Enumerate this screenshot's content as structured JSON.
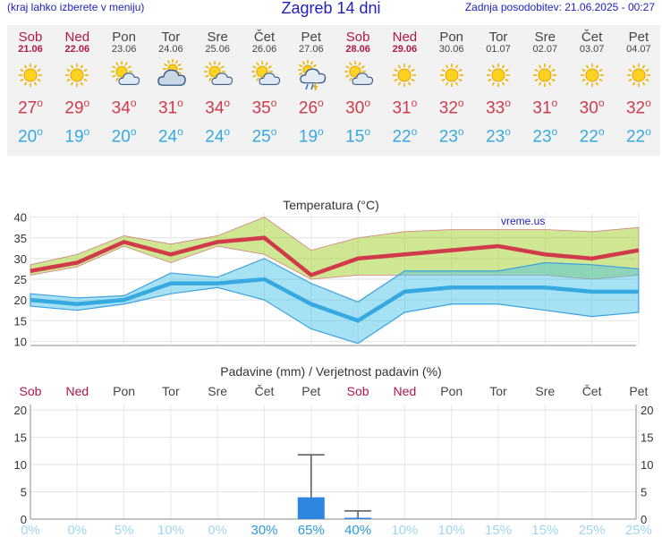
{
  "header": {
    "left": "(kraj lahko izberete v meniju)",
    "title": "Zagreb 14 dni",
    "updated": "Zadnja posodobitev: 21.06.2025 - 00:27"
  },
  "days": [
    {
      "name": "Sob",
      "date": "21.06",
      "weekend": true,
      "icon": "sun-icon",
      "max": "27",
      "min": "20"
    },
    {
      "name": "Ned",
      "date": "22.06",
      "weekend": true,
      "icon": "sun-icon",
      "max": "29",
      "min": "19"
    },
    {
      "name": "Pon",
      "date": "23.06",
      "weekend": false,
      "icon": "sun-cloud-icon",
      "max": "34",
      "min": "20"
    },
    {
      "name": "Tor",
      "date": "24.06",
      "weekend": false,
      "icon": "cloudy-icon",
      "max": "31",
      "min": "24"
    },
    {
      "name": "Sre",
      "date": "25.06",
      "weekend": false,
      "icon": "sun-cloud-icon",
      "max": "34",
      "min": "24"
    },
    {
      "name": "Čet",
      "date": "26.06",
      "weekend": false,
      "icon": "sun-cloud-icon",
      "max": "35",
      "min": "25"
    },
    {
      "name": "Pet",
      "date": "27.06",
      "weekend": false,
      "icon": "rain-storm-icon",
      "max": "26",
      "min": "19"
    },
    {
      "name": "Sob",
      "date": "28.06",
      "weekend": true,
      "icon": "sun-cloud-icon",
      "max": "30",
      "min": "15"
    },
    {
      "name": "Ned",
      "date": "29.06",
      "weekend": true,
      "icon": "sun-icon",
      "max": "31",
      "min": "22"
    },
    {
      "name": "Pon",
      "date": "30.06",
      "weekend": false,
      "icon": "sun-icon",
      "max": "32",
      "min": "23"
    },
    {
      "name": "Tor",
      "date": "01.07",
      "weekend": false,
      "icon": "sun-icon",
      "max": "33",
      "min": "23"
    },
    {
      "name": "Sre",
      "date": "02.07",
      "weekend": false,
      "icon": "sun-icon",
      "max": "31",
      "min": "23"
    },
    {
      "name": "Čet",
      "date": "03.07",
      "weekend": false,
      "icon": "sun-icon",
      "max": "30",
      "min": "22"
    },
    {
      "name": "Pet",
      "date": "04.07",
      "weekend": false,
      "icon": "sun-icon",
      "max": "32",
      "min": "22"
    }
  ],
  "colors": {
    "max": "#d13a4a",
    "min": "#36a9e1",
    "weekend": "#b0174a",
    "bar": "#2f86e0"
  },
  "chart_data": [
    {
      "type": "line",
      "title": "Temperatura (°C)",
      "watermark": "vreme.us",
      "categories": [
        "Sob",
        "Ned",
        "Pon",
        "Tor",
        "Sre",
        "Čet",
        "Pet",
        "Sob",
        "Ned",
        "Pon",
        "Tor",
        "Sre",
        "Čet",
        "Pet"
      ],
      "ylim": [
        9,
        41
      ],
      "yticks": [
        10,
        15,
        20,
        25,
        30,
        35,
        40
      ],
      "series": [
        {
          "values": [
            27,
            29,
            34,
            31,
            34,
            35,
            26,
            30,
            31,
            32,
            33,
            31,
            30,
            32
          ],
          "band_low": [
            26,
            28,
            33,
            29,
            33,
            31,
            25,
            26,
            26,
            26,
            26,
            26,
            25,
            26
          ],
          "band_high": [
            28.5,
            31,
            35.5,
            33.5,
            35.5,
            40,
            32,
            35,
            36.5,
            37,
            37,
            37,
            36.5,
            37.5
          ]
        },
        {
          "values": [
            20,
            19,
            20,
            24,
            24,
            25,
            19,
            15,
            22,
            23,
            23,
            23,
            22,
            22
          ],
          "band_low": [
            18.5,
            17.5,
            19,
            21.5,
            23,
            20,
            13,
            9.5,
            17,
            19,
            19,
            17.5,
            16,
            17
          ],
          "band_high": [
            21.5,
            20.5,
            21,
            26.5,
            25.5,
            30,
            24,
            19.5,
            27,
            27,
            27,
            29,
            28.5,
            27.5
          ]
        }
      ]
    },
    {
      "type": "bar",
      "title": "Padavine (mm) / Verjetnost padavin (%)",
      "categories": [
        "Sob",
        "Ned",
        "Pon",
        "Tor",
        "Sre",
        "Čet",
        "Pet",
        "Sob",
        "Ned",
        "Pon",
        "Tor",
        "Sre",
        "Čet",
        "Pet"
      ],
      "ylim": [
        0,
        21
      ],
      "yticks": [
        0,
        5,
        10,
        15,
        20
      ],
      "values": [
        0,
        0,
        0,
        0,
        0,
        0,
        4,
        0.2,
        0,
        0,
        0,
        0,
        0,
        0
      ],
      "error_high": [
        null,
        null,
        null,
        null,
        null,
        null,
        11.8,
        1.5,
        null,
        null,
        null,
        null,
        null,
        null
      ],
      "probability": [
        "0%",
        "0%",
        "5%",
        "10%",
        "0%",
        "30%",
        "65%",
        "40%",
        "10%",
        "10%",
        "15%",
        "15%",
        "25%",
        "25%"
      ]
    }
  ]
}
